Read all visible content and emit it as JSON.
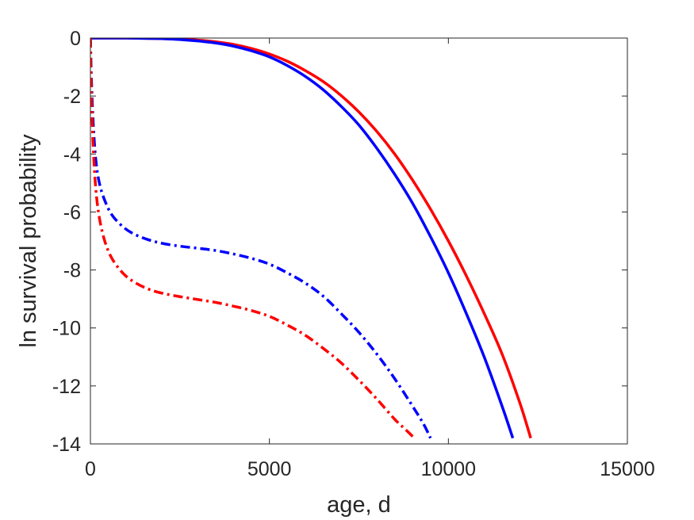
{
  "chart_data": {
    "type": "line",
    "xlabel": "age, d",
    "ylabel": "ln survival probability",
    "xlim": [
      0,
      15000
    ],
    "ylim": [
      -14,
      0
    ],
    "xticks": [
      0,
      5000,
      10000,
      15000
    ],
    "yticks": [
      0,
      -2,
      -4,
      -6,
      -8,
      -10,
      -12,
      -14
    ],
    "xtick_labels": [
      "0",
      "5000",
      "10000",
      "15000"
    ],
    "ytick_labels": [
      "0",
      "-2",
      "-4",
      "-6",
      "-8",
      "-10",
      "-12",
      "-14"
    ],
    "grid": false,
    "legend": "none",
    "series": [
      {
        "color": "#ff0000",
        "style": "solid",
        "x": [
          0,
          500,
          1000,
          1500,
          2000,
          2500,
          3000,
          3500,
          4000,
          4500,
          5000,
          5500,
          6000,
          6500,
          7000,
          7500,
          8000,
          8500,
          9000,
          9500,
          10000,
          10500,
          11000,
          11500,
          12000,
          12300
        ],
        "y": [
          0,
          0,
          0,
          -0.01,
          -0.02,
          -0.04,
          -0.07,
          -0.13,
          -0.22,
          -0.36,
          -0.55,
          -0.8,
          -1.12,
          -1.5,
          -1.98,
          -2.55,
          -3.22,
          -4.0,
          -4.9,
          -5.9,
          -7.0,
          -8.2,
          -9.5,
          -10.9,
          -12.6,
          -13.8
        ]
      },
      {
        "color": "#0000ff",
        "style": "solid",
        "x": [
          0,
          500,
          1000,
          1500,
          2000,
          2500,
          3000,
          3500,
          4000,
          4500,
          5000,
          5500,
          6000,
          6500,
          7000,
          7500,
          8000,
          8500,
          9000,
          9500,
          10000,
          10500,
          11000,
          11500,
          11800
        ],
        "y": [
          0,
          0,
          0,
          -0.01,
          -0.02,
          -0.05,
          -0.1,
          -0.17,
          -0.28,
          -0.44,
          -0.65,
          -0.95,
          -1.32,
          -1.78,
          -2.35,
          -3.0,
          -3.8,
          -4.7,
          -5.7,
          -6.85,
          -8.1,
          -9.5,
          -11.0,
          -12.7,
          -13.8
        ]
      },
      {
        "color": "#0000ff",
        "style": "dashdot",
        "x": [
          0,
          30,
          80,
          150,
          250,
          400,
          600,
          900,
          1200,
          1600,
          2000,
          2500,
          3000,
          3500,
          4000,
          4500,
          5000,
          5500,
          6000,
          6500,
          7000,
          7500,
          8000,
          8500,
          9000,
          9300,
          9500
        ],
        "y": [
          0,
          -1.5,
          -3.0,
          -4.2,
          -5.0,
          -5.6,
          -6.1,
          -6.5,
          -6.75,
          -6.95,
          -7.08,
          -7.18,
          -7.25,
          -7.33,
          -7.45,
          -7.6,
          -7.8,
          -8.1,
          -8.45,
          -8.9,
          -9.5,
          -10.15,
          -10.9,
          -11.75,
          -12.7,
          -13.3,
          -13.8
        ]
      },
      {
        "color": "#ff0000",
        "style": "dashdot",
        "x": [
          0,
          30,
          80,
          150,
          250,
          400,
          600,
          900,
          1200,
          1600,
          2000,
          2500,
          3000,
          3500,
          4000,
          4500,
          5000,
          5500,
          6000,
          6500,
          7000,
          7500,
          8000,
          8500,
          8800,
          9050
        ],
        "y": [
          0,
          -2.0,
          -3.8,
          -5.2,
          -6.2,
          -7.0,
          -7.6,
          -8.1,
          -8.4,
          -8.65,
          -8.8,
          -8.92,
          -9.02,
          -9.12,
          -9.25,
          -9.4,
          -9.6,
          -9.9,
          -10.25,
          -10.7,
          -11.2,
          -11.8,
          -12.45,
          -13.15,
          -13.5,
          -13.8
        ]
      }
    ]
  }
}
